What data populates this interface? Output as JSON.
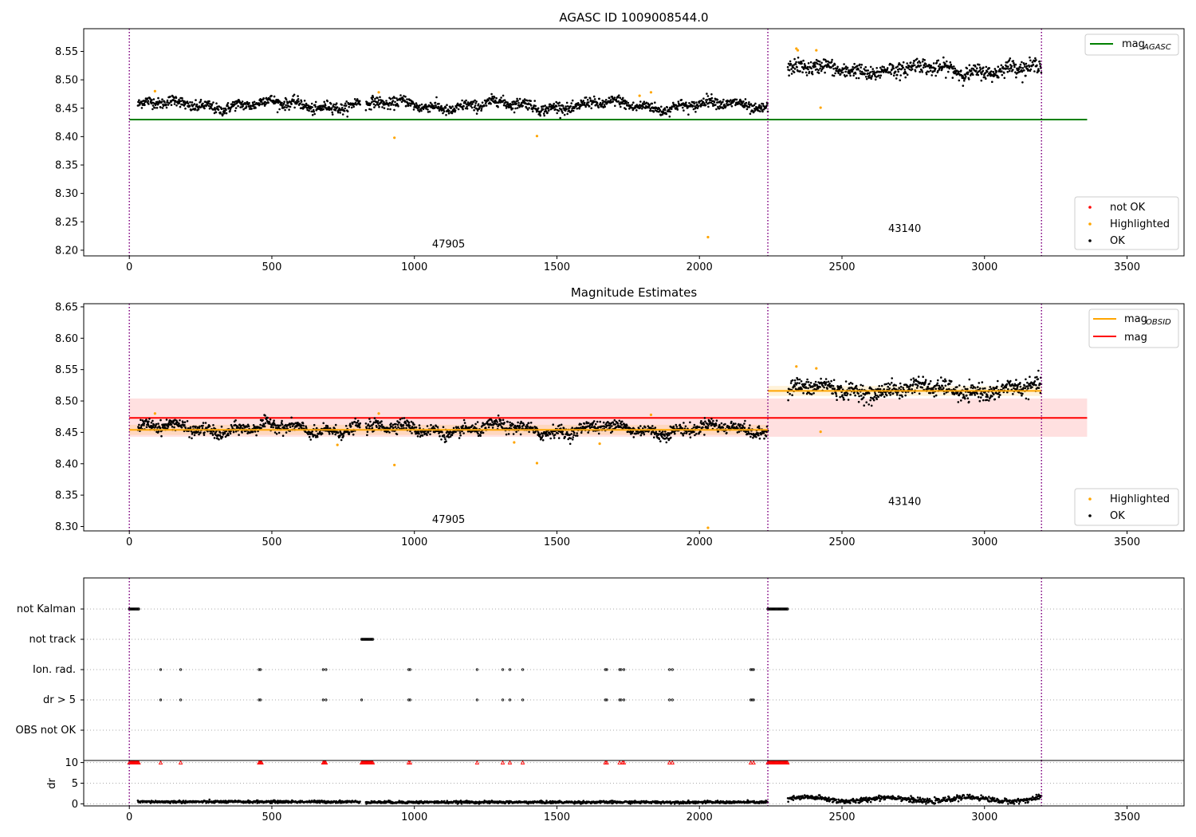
{
  "chart_data": [
    {
      "type": "scatter",
      "title": "AGASC ID 1009008544.0",
      "xlim": [
        -160,
        3700
      ],
      "ylim": [
        8.19,
        8.59
      ],
      "xticks": [
        0,
        500,
        1000,
        1500,
        2000,
        2500,
        3000,
        3500
      ],
      "xtick_labels": [
        "0",
        "500",
        "1000",
        "1500",
        "2000",
        "2500",
        "3000",
        "3500"
      ],
      "yticks": [
        8.2,
        8.25,
        8.3,
        8.35,
        8.4,
        8.45,
        8.5,
        8.55
      ],
      "ytick_labels": [
        "8.20",
        "8.25",
        "8.30",
        "8.35",
        "8.40",
        "8.45",
        "8.50",
        "8.55"
      ],
      "obs_boundaries": [
        0,
        2240,
        3200
      ],
      "obsid_labels": [
        {
          "text": "47905",
          "x": 1120,
          "y": 8.205
        },
        {
          "text": "43140",
          "x": 2720,
          "y": 8.232
        }
      ],
      "lines": [
        {
          "name": "mag_AGASC",
          "y": 8.43,
          "x": [
            0,
            3360
          ],
          "color": "#008000"
        }
      ],
      "legend_top": [
        {
          "label": "mag",
          "sub": "AGASC",
          "color": "#008000"
        }
      ],
      "legend_bottom": [
        {
          "label": "not OK",
          "color": "#ff0000"
        },
        {
          "label": "Highlighted",
          "color": "#ffa500"
        },
        {
          "label": "OK",
          "color": "#000000"
        }
      ],
      "ok_segments": [
        {
          "x0": 30,
          "x1": 810,
          "mean": 8.456,
          "sd": 0.006
        },
        {
          "x0": 830,
          "x1": 2240,
          "mean": 8.455,
          "sd": 0.006
        },
        {
          "x0": 2310,
          "x1": 3200,
          "mean": 8.518,
          "sd": 0.008
        }
      ],
      "highlighted": [
        [
          90,
          8.48
        ],
        [
          875,
          8.478
        ],
        [
          930,
          8.398
        ],
        [
          1430,
          8.401
        ],
        [
          2030,
          8.223
        ],
        [
          2340,
          8.555
        ],
        [
          2345,
          8.552
        ],
        [
          2410,
          8.552
        ],
        [
          2425,
          8.451
        ],
        [
          1790,
          8.472
        ],
        [
          1830,
          8.478
        ]
      ]
    },
    {
      "type": "scatter",
      "title": "Magnitude Estimates",
      "xlim": [
        -160,
        3700
      ],
      "ylim": [
        8.293,
        8.655
      ],
      "xticks": [
        0,
        500,
        1000,
        1500,
        2000,
        2500,
        3000,
        3500
      ],
      "xtick_labels": [
        "0",
        "500",
        "1000",
        "1500",
        "2000",
        "2500",
        "3000",
        "3500"
      ],
      "yticks": [
        8.3,
        8.35,
        8.4,
        8.45,
        8.5,
        8.55,
        8.6,
        8.65
      ],
      "ytick_labels": [
        "8.30",
        "8.35",
        "8.40",
        "8.45",
        "8.50",
        "8.55",
        "8.60",
        "8.65"
      ],
      "obs_boundaries": [
        0,
        2240,
        3200
      ],
      "obsid_labels": [
        {
          "text": "47905",
          "x": 1120,
          "y": 8.306
        },
        {
          "text": "43140",
          "x": 2720,
          "y": 8.334
        }
      ],
      "mag_line": {
        "y": 8.473,
        "x": [
          0,
          3360
        ],
        "band": [
          8.443,
          8.504
        ],
        "color": "#ff0000"
      },
      "obsid_lines": [
        {
          "x": [
            0,
            2240
          ],
          "y": 8.454,
          "color": "#ffa500"
        },
        {
          "x": [
            2240,
            3200
          ],
          "y": 8.516,
          "color": "#ffa500"
        }
      ],
      "legend_top": [
        {
          "label": "mag",
          "sub": "OBSID",
          "color": "#ffa500"
        },
        {
          "label": "mag",
          "sub": "",
          "color": "#ff0000"
        }
      ],
      "legend_bottom": [
        {
          "label": "Highlighted",
          "color": "#ffa500"
        },
        {
          "label": "OK",
          "color": "#000000"
        }
      ],
      "ok_segments": [
        {
          "x0": 30,
          "x1": 810,
          "mean": 8.456,
          "sd": 0.006
        },
        {
          "x0": 830,
          "x1": 2240,
          "mean": 8.455,
          "sd": 0.006
        },
        {
          "x0": 2310,
          "x1": 3200,
          "mean": 8.518,
          "sd": 0.008
        }
      ],
      "highlighted": [
        [
          90,
          8.48
        ],
        [
          730,
          8.43
        ],
        [
          875,
          8.48
        ],
        [
          930,
          8.398
        ],
        [
          1350,
          8.434
        ],
        [
          1430,
          8.401
        ],
        [
          1650,
          8.432
        ],
        [
          2030,
          8.298
        ],
        [
          2340,
          8.555
        ],
        [
          2410,
          8.552
        ],
        [
          2425,
          8.451
        ],
        [
          1830,
          8.478
        ]
      ]
    },
    {
      "type": "scatter",
      "title": "",
      "xlim": [
        -160,
        3700
      ],
      "categories": [
        "not Kalman",
        "not track",
        "Ion. rad.",
        "dr > 5",
        "OBS not OK"
      ],
      "flags": {
        "not Kalman": [
          [
            0,
            35
          ],
          [
            2240,
            2310
          ]
        ],
        "not track": [
          [
            815,
            855
          ]
        ],
        "Ion. rad.": [
          110,
          180,
          455,
          460,
          680,
          690,
          980,
          985,
          1220,
          1310,
          1335,
          1380,
          1670,
          1675,
          1720,
          1725,
          1735,
          1895,
          1905,
          2180,
          2185,
          2190
        ],
        "dr > 5": [
          110,
          180,
          455,
          460,
          680,
          690,
          815,
          980,
          985,
          1220,
          1310,
          1335,
          1380,
          1670,
          1675,
          1720,
          1725,
          1735,
          1895,
          1905,
          2180,
          2185,
          2190
        ],
        "OBS not OK": []
      },
      "obs_boundaries": [
        0,
        2240,
        3200
      ]
    },
    {
      "type": "scatter",
      "title": "",
      "ylabel": "dr",
      "xlim": [
        -160,
        3700
      ],
      "ylim": [
        -0.5,
        10.5
      ],
      "xticks": [
        0,
        500,
        1000,
        1500,
        2000,
        2500,
        3000,
        3500
      ],
      "xtick_labels": [
        "0",
        "500",
        "1000",
        "1500",
        "2000",
        "2500",
        "3000",
        "3500"
      ],
      "yticks": [
        0,
        5,
        10
      ],
      "ytick_labels": [
        "0",
        "5",
        "10"
      ],
      "obs_boundaries": [
        0,
        2240,
        3200
      ],
      "clipped": [
        [
          0,
          35
        ],
        [
          455,
          465
        ],
        [
          680,
          690
        ],
        [
          815,
          855
        ],
        [
          2240,
          2310
        ],
        110,
        180,
        980,
        985,
        1220,
        1310,
        1335,
        1380,
        1670,
        1675,
        1720,
        1730,
        1735,
        1895,
        1905,
        2180,
        2190
      ],
      "clip_value": 10,
      "dr_segments": [
        {
          "x0": 30,
          "x1": 810,
          "mean": 0.5,
          "sd": 0.25
        },
        {
          "x0": 830,
          "x1": 2240,
          "mean": 0.4,
          "sd": 0.25
        },
        {
          "x0": 2310,
          "x1": 3200,
          "mean": 1.1,
          "sd": 0.5
        }
      ]
    }
  ]
}
